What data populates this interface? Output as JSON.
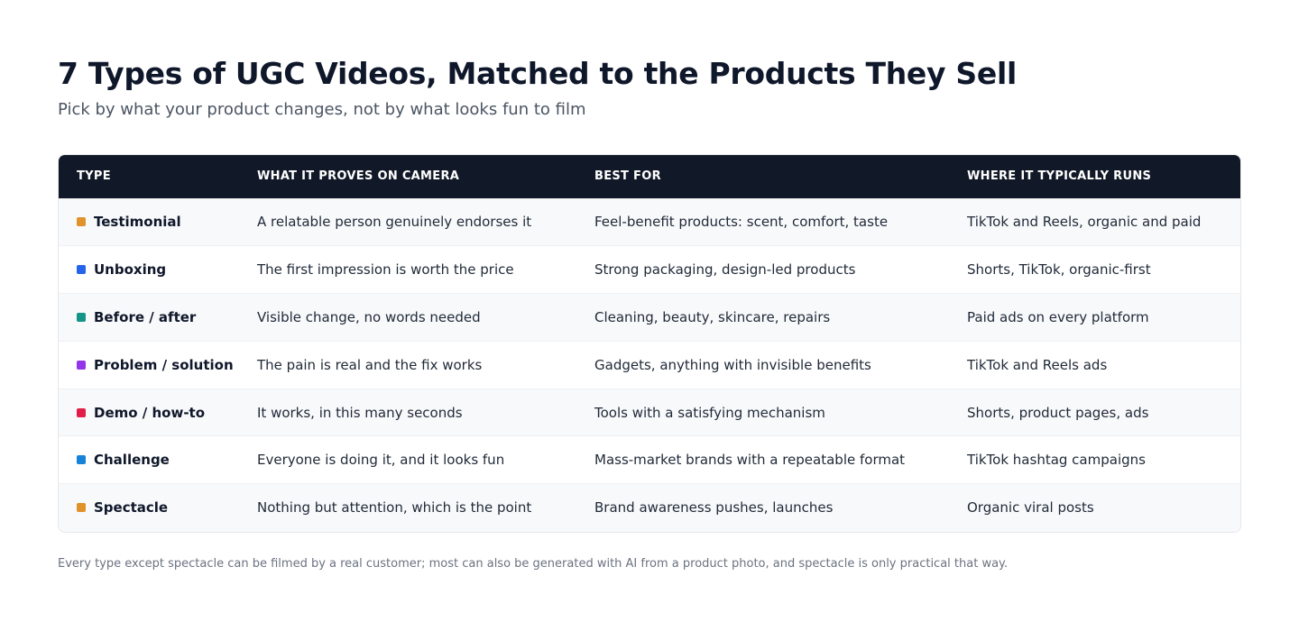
{
  "title": "7 Types of UGC Videos, Matched to the Products They Sell",
  "subtitle": "Pick by what your product changes, not by what looks fun to film",
  "columns": [
    "TYPE",
    "WHAT IT PROVES ON CAMERA",
    "BEST FOR",
    "WHERE IT TYPICALLY RUNS"
  ],
  "rows": [
    {
      "type": "Testimonial",
      "color": "#e0922b",
      "proves": "A relatable person genuinely endorses it",
      "best_for": "Feel-benefit products: scent, comfort, taste",
      "runs": "TikTok and Reels, organic and paid"
    },
    {
      "type": "Unboxing",
      "color": "#2563eb",
      "proves": "The first impression is worth the price",
      "best_for": "Strong packaging, design-led products",
      "runs": "Shorts, TikTok, organic-first"
    },
    {
      "type": "Before / after",
      "color": "#159488",
      "proves": "Visible change, no words needed",
      "best_for": "Cleaning, beauty, skincare, repairs",
      "runs": "Paid ads on every platform"
    },
    {
      "type": "Problem / solution",
      "color": "#9333ea",
      "proves": "The pain is real and the fix works",
      "best_for": "Gadgets, anything with invisible benefits",
      "runs": "TikTok and Reels ads"
    },
    {
      "type": "Demo / how-to",
      "color": "#e11d48",
      "proves": "It works, in this many seconds",
      "best_for": "Tools with a satisfying mechanism",
      "runs": "Shorts, product pages, ads"
    },
    {
      "type": "Challenge",
      "color": "#1683d8",
      "proves": "Everyone is doing it, and it looks fun",
      "best_for": "Mass-market brands with a repeatable format",
      "runs": "TikTok hashtag campaigns"
    },
    {
      "type": "Spectacle",
      "color": "#e0922b",
      "proves": "Nothing but attention, which is the point",
      "best_for": "Brand awareness pushes, launches",
      "runs": "Organic viral posts"
    }
  ],
  "footnote": "Every type except spectacle can be filmed by a real customer; most can also be generated with AI from a product photo, and spectacle is only practical that way."
}
